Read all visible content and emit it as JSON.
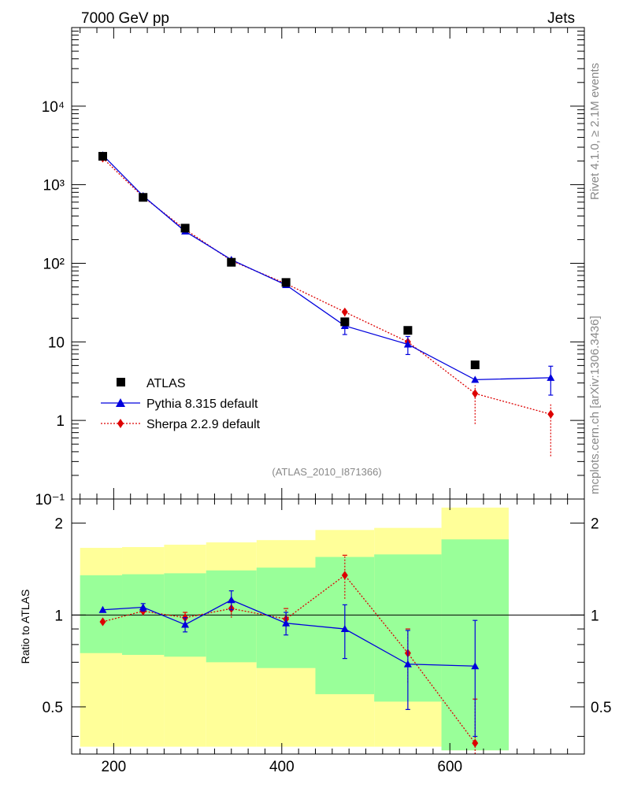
{
  "header": {
    "left": "7000 GeV pp",
    "right": "Jets"
  },
  "side_labels": {
    "rivet": "Rivet 4.1.0, ≥ 2.1M events",
    "mcplots": "mcplots.cern.ch [arXiv:1306.3436]"
  },
  "analysis_id": "(ATLAS_2010_I871366)",
  "colors": {
    "data": "#000000",
    "pythia": "#0000dd",
    "sherpa": "#dd0000",
    "band_inner": "#99ff99",
    "band_outer": "#ffff99"
  },
  "chart_data": [
    {
      "type": "line",
      "title": "",
      "panel": "main",
      "yscale": "log",
      "xlim": [
        150,
        760
      ],
      "ylim": [
        0.1,
        100000
      ],
      "ytick_labels": [
        "10⁻¹",
        "1",
        "10",
        "10²",
        "10³",
        "10⁴"
      ],
      "legend_position": "bottom-left",
      "series": [
        {
          "name": "ATLAS",
          "style": "square-markers",
          "x": [
            187,
            235,
            285,
            340,
            405,
            475,
            550,
            630
          ],
          "y": [
            2300,
            690,
            280,
            103,
            57,
            18,
            14,
            5.1
          ]
        },
        {
          "name": "Pythia 8.315 default",
          "style": "solid-triangles",
          "x": [
            187,
            235,
            285,
            340,
            405,
            475,
            550,
            630,
            720
          ],
          "y": [
            2380,
            720,
            255,
            111,
            53,
            16,
            9.3,
            3.3,
            3.5
          ],
          "err_lo": [
            0,
            0,
            0,
            0,
            0,
            3.6,
            2.4,
            0,
            1.4
          ],
          "err_hi": [
            0,
            0,
            0,
            0,
            0,
            3.6,
            2.4,
            0,
            1.4
          ]
        },
        {
          "name": "Sherpa 2.2.9 default",
          "style": "dotted-diamonds",
          "x": [
            187,
            235,
            285,
            340,
            405,
            475,
            550,
            630,
            720
          ],
          "y": [
            2180,
            700,
            270,
            108,
            55,
            24,
            10,
            2.2,
            1.2
          ],
          "err_lo": [
            0,
            0,
            0,
            0,
            0,
            3,
            1,
            1.3,
            0.85
          ],
          "err_hi": [
            0,
            0,
            0,
            0,
            0,
            3,
            1,
            0.6,
            0.4
          ]
        }
      ]
    },
    {
      "type": "line",
      "title": "",
      "panel": "ratio",
      "ylabel": "Ratio to ATLAS",
      "yscale": "log",
      "xlim": [
        150,
        760
      ],
      "ylim": [
        0.35,
        2.4
      ],
      "xticks": [
        200,
        400,
        600
      ],
      "yticks": [
        0.5,
        1,
        2
      ],
      "reference_line": 1,
      "bands": [
        {
          "x0": 160,
          "x1": 210,
          "inner_lo": 0.75,
          "inner_hi": 1.35,
          "outer_lo": 0.37,
          "outer_hi": 1.66
        },
        {
          "x0": 210,
          "x1": 260,
          "inner_lo": 0.74,
          "inner_hi": 1.36,
          "outer_lo": 0.37,
          "outer_hi": 1.67
        },
        {
          "x0": 260,
          "x1": 310,
          "inner_lo": 0.73,
          "inner_hi": 1.37,
          "outer_lo": 0.37,
          "outer_hi": 1.7
        },
        {
          "x0": 310,
          "x1": 370,
          "inner_lo": 0.7,
          "inner_hi": 1.4,
          "outer_lo": 0.37,
          "outer_hi": 1.73
        },
        {
          "x0": 370,
          "x1": 440,
          "inner_lo": 0.67,
          "inner_hi": 1.43,
          "outer_lo": 0.37,
          "outer_hi": 1.76
        },
        {
          "x0": 440,
          "x1": 510,
          "inner_lo": 0.55,
          "inner_hi": 1.55,
          "outer_lo": 0.37,
          "outer_hi": 1.9
        },
        {
          "x0": 510,
          "x1": 590,
          "inner_lo": 0.52,
          "inner_hi": 1.58,
          "outer_lo": 0.37,
          "outer_hi": 1.93
        },
        {
          "x0": 590,
          "x1": 670,
          "inner_lo": 0.36,
          "inner_hi": 1.77,
          "outer_lo": 0.36,
          "outer_hi": 2.25
        }
      ],
      "series": [
        {
          "name": "Pythia 8.315 default",
          "x": [
            187,
            235,
            285,
            340,
            405,
            475,
            550,
            630
          ],
          "y": [
            1.04,
            1.06,
            0.93,
            1.12,
            0.94,
            0.9,
            0.69,
            0.68
          ],
          "err": [
            0,
            0.03,
            0.05,
            0.08,
            0.08,
            0.18,
            0.2,
            0.28
          ]
        },
        {
          "name": "Sherpa 2.2.9 default",
          "x": [
            187,
            235,
            285,
            340,
            405,
            475,
            550,
            630
          ],
          "y": [
            0.95,
            1.03,
            0.98,
            1.05,
            0.97,
            1.35,
            0.75,
            0.38
          ],
          "err": [
            0,
            0.02,
            0.04,
            0.07,
            0.08,
            0.22,
            0.15,
            0.15
          ]
        }
      ]
    }
  ]
}
